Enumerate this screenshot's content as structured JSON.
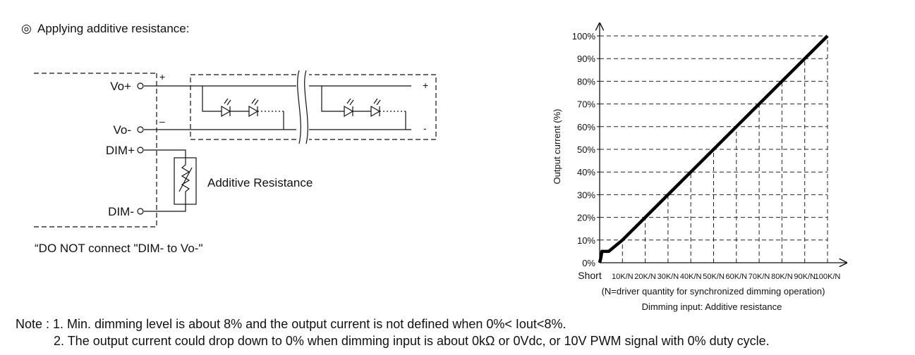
{
  "heading": {
    "symbol": "◎",
    "text": "Applying additive resistance:"
  },
  "circuit": {
    "terminals": {
      "vo_plus": "Vo+",
      "vo_minus": "Vo-",
      "dim_plus": "DIM+",
      "dim_minus": "DIM-"
    },
    "driver_plus_sign": "+",
    "driver_minus_sign": "–",
    "led_plus_sign": "+",
    "led_minus_sign": "-",
    "resistor_label": "Additive Resistance",
    "warning": "“DO NOT connect \"DIM- to Vo-\""
  },
  "chart_data": {
    "type": "line",
    "ylabel": "Output current (%)",
    "x_tick_labels": [
      "Short",
      "10K/N",
      "20K/N",
      "30K/N",
      "40K/N",
      "50K/N",
      "60K/N",
      "70K/N",
      "80K/N",
      "90K/N",
      "100K/N"
    ],
    "y_tick_labels": [
      "0%",
      "10%",
      "20%",
      "30%",
      "40%",
      "50%",
      "60%",
      "70%",
      "80%",
      "90%",
      "100%"
    ],
    "xlim": [
      0,
      100
    ],
    "ylim": [
      0,
      100
    ],
    "grid": "dashed",
    "series": [
      {
        "x": [
          0,
          0.5,
          1,
          4,
          10,
          20,
          30,
          40,
          50,
          60,
          70,
          80,
          90,
          100
        ],
        "y": [
          0,
          2,
          5,
          5,
          10,
          20,
          30,
          40,
          50,
          60,
          70,
          80,
          90,
          100
        ]
      }
    ],
    "xlabel_line1": "(N=driver quantity for synchronized dimming operation)",
    "xlabel_line2": "Dimming input: Additive resistance"
  },
  "notes": {
    "line1": "Note : 1. Min. dimming level is about 8% and the output current is not defined when 0%< Iout<8%.",
    "line2": "2. The output current could drop down to 0% when dimming input is about 0kΩ  or 0Vdc, or 10V PWM signal with 0% duty cycle."
  }
}
